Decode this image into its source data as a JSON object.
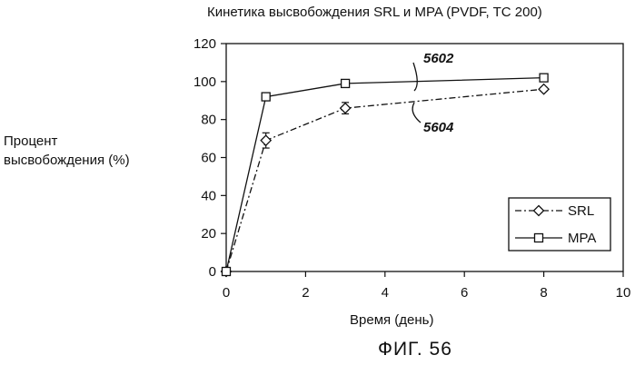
{
  "figure": {
    "caption": "ФИГ. 56"
  },
  "chart_data": {
    "type": "line",
    "title": "Кинетика высвобождения SRL и MPA (PVDF, TC 200)",
    "xlabel": "Время (день)",
    "ylabel_lines": [
      "Процент",
      "высвобождения (%)"
    ],
    "xlim": [
      0,
      10
    ],
    "ylim": [
      0,
      120
    ],
    "xticks": [
      0,
      2,
      4,
      6,
      8,
      10
    ],
    "yticks": [
      0,
      20,
      40,
      60,
      80,
      100,
      120
    ],
    "grid": false,
    "legend_position": "bottom-right",
    "series": [
      {
        "name": "SRL",
        "marker": "diamond",
        "line_style": "dash-dot",
        "x": [
          0,
          1,
          3,
          8
        ],
        "y": [
          0,
          69,
          86,
          96
        ],
        "error": [
          0,
          4,
          3,
          1
        ]
      },
      {
        "name": "MPA",
        "marker": "square",
        "line_style": "solid",
        "x": [
          0,
          1,
          3,
          8
        ],
        "y": [
          0,
          92,
          99,
          102
        ],
        "error": [
          0,
          0,
          1,
          0
        ]
      }
    ],
    "annotations": [
      {
        "text": "5602",
        "series": "MPA"
      },
      {
        "text": "5604",
        "series": "SRL"
      }
    ]
  }
}
